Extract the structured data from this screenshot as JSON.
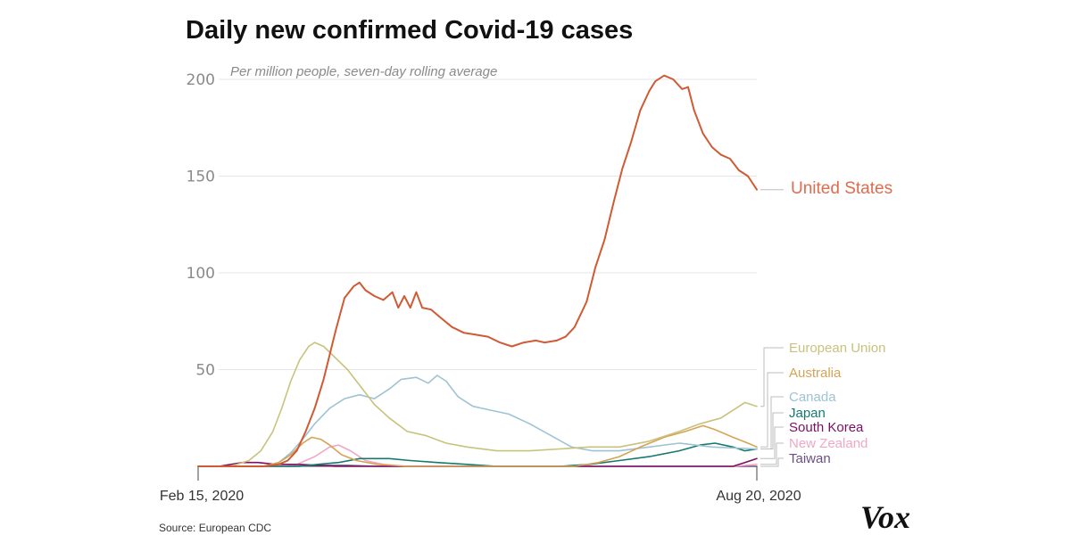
{
  "chart_data": {
    "type": "line",
    "title": "Daily new confirmed Covid-19 cases",
    "subtitle": "Per million people, seven-day rolling average",
    "source": "Source: European CDC",
    "logo": "Vox",
    "x_start_label": "Feb 15, 2020",
    "x_end_label": "Aug 20, 2020",
    "xlim": [
      "2020-02-15",
      "2020-08-20"
    ],
    "ylim": [
      0,
      200
    ],
    "yticks": [
      50,
      100,
      150,
      200
    ],
    "grid": true,
    "legend_placement": "right (end-of-line labels)",
    "series": [
      {
        "name": "United States",
        "color": "#d05a34",
        "points": [
          [
            "2020-02-15",
            0
          ],
          [
            "2020-03-08",
            0
          ],
          [
            "2020-03-13",
            1
          ],
          [
            "2020-03-16",
            3
          ],
          [
            "2020-03-19",
            8
          ],
          [
            "2020-03-22",
            18
          ],
          [
            "2020-03-25",
            30
          ],
          [
            "2020-03-28",
            45
          ],
          [
            "2020-04-01",
            70
          ],
          [
            "2020-04-04",
            87
          ],
          [
            "2020-04-07",
            93
          ],
          [
            "2020-04-09",
            95
          ],
          [
            "2020-04-11",
            91
          ],
          [
            "2020-04-14",
            88
          ],
          [
            "2020-04-17",
            86
          ],
          [
            "2020-04-20",
            90
          ],
          [
            "2020-04-22",
            82
          ],
          [
            "2020-04-24",
            88
          ],
          [
            "2020-04-26",
            82
          ],
          [
            "2020-04-28",
            90
          ],
          [
            "2020-04-30",
            82
          ],
          [
            "2020-05-03",
            81
          ],
          [
            "2020-05-06",
            77
          ],
          [
            "2020-05-10",
            72
          ],
          [
            "2020-05-14",
            69
          ],
          [
            "2020-05-18",
            68
          ],
          [
            "2020-05-22",
            67
          ],
          [
            "2020-05-26",
            64
          ],
          [
            "2020-05-30",
            62
          ],
          [
            "2020-06-03",
            64
          ],
          [
            "2020-06-07",
            65
          ],
          [
            "2020-06-10",
            64
          ],
          [
            "2020-06-14",
            65
          ],
          [
            "2020-06-17",
            67
          ],
          [
            "2020-06-20",
            72
          ],
          [
            "2020-06-24",
            85
          ],
          [
            "2020-06-27",
            103
          ],
          [
            "2020-06-30",
            117
          ],
          [
            "2020-07-03",
            136
          ],
          [
            "2020-07-06",
            154
          ],
          [
            "2020-07-09",
            168
          ],
          [
            "2020-07-12",
            184
          ],
          [
            "2020-07-15",
            194
          ],
          [
            "2020-07-17",
            199
          ],
          [
            "2020-07-20",
            202
          ],
          [
            "2020-07-23",
            200
          ],
          [
            "2020-07-26",
            195
          ],
          [
            "2020-07-28",
            196
          ],
          [
            "2020-07-30",
            184
          ],
          [
            "2020-08-02",
            172
          ],
          [
            "2020-08-05",
            165
          ],
          [
            "2020-08-08",
            161
          ],
          [
            "2020-08-11",
            159
          ],
          [
            "2020-08-14",
            153
          ],
          [
            "2020-08-17",
            150
          ],
          [
            "2020-08-20",
            143
          ]
        ]
      },
      {
        "name": "European Union",
        "color": "#c9c27c",
        "points": [
          [
            "2020-02-15",
            0
          ],
          [
            "2020-02-25",
            0
          ],
          [
            "2020-02-28",
            1
          ],
          [
            "2020-03-03",
            3
          ],
          [
            "2020-03-07",
            8
          ],
          [
            "2020-03-11",
            18
          ],
          [
            "2020-03-14",
            30
          ],
          [
            "2020-03-17",
            44
          ],
          [
            "2020-03-20",
            55
          ],
          [
            "2020-03-23",
            62
          ],
          [
            "2020-03-25",
            64
          ],
          [
            "2020-03-28",
            62
          ],
          [
            "2020-04-01",
            56
          ],
          [
            "2020-04-05",
            50
          ],
          [
            "2020-04-09",
            42
          ],
          [
            "2020-04-14",
            32
          ],
          [
            "2020-04-19",
            25
          ],
          [
            "2020-04-25",
            18
          ],
          [
            "2020-05-01",
            16
          ],
          [
            "2020-05-08",
            12
          ],
          [
            "2020-05-15",
            10
          ],
          [
            "2020-05-25",
            8
          ],
          [
            "2020-06-05",
            8
          ],
          [
            "2020-06-15",
            9
          ],
          [
            "2020-06-25",
            10
          ],
          [
            "2020-07-05",
            10
          ],
          [
            "2020-07-15",
            13
          ],
          [
            "2020-07-25",
            18
          ],
          [
            "2020-08-01",
            22
          ],
          [
            "2020-08-08",
            25
          ],
          [
            "2020-08-13",
            30
          ],
          [
            "2020-08-16",
            33
          ],
          [
            "2020-08-20",
            31
          ]
        ]
      },
      {
        "name": "Australia",
        "color": "#d6a354",
        "points": [
          [
            "2020-02-15",
            0
          ],
          [
            "2020-03-08",
            0
          ],
          [
            "2020-03-13",
            2
          ],
          [
            "2020-03-17",
            6
          ],
          [
            "2020-03-21",
            12
          ],
          [
            "2020-03-24",
            15
          ],
          [
            "2020-03-27",
            14
          ],
          [
            "2020-03-30",
            11
          ],
          [
            "2020-04-03",
            6
          ],
          [
            "2020-04-08",
            3
          ],
          [
            "2020-04-15",
            1
          ],
          [
            "2020-04-25",
            0
          ],
          [
            "2020-06-20",
            0
          ],
          [
            "2020-06-28",
            2
          ],
          [
            "2020-07-05",
            5
          ],
          [
            "2020-07-12",
            10
          ],
          [
            "2020-07-20",
            15
          ],
          [
            "2020-07-27",
            18
          ],
          [
            "2020-08-02",
            21
          ],
          [
            "2020-08-06",
            19
          ],
          [
            "2020-08-12",
            15
          ],
          [
            "2020-08-17",
            12
          ],
          [
            "2020-08-20",
            10
          ]
        ]
      },
      {
        "name": "Canada",
        "color": "#9dc3d4",
        "points": [
          [
            "2020-02-15",
            0
          ],
          [
            "2020-03-08",
            0
          ],
          [
            "2020-03-13",
            2
          ],
          [
            "2020-03-17",
            7
          ],
          [
            "2020-03-21",
            14
          ],
          [
            "2020-03-25",
            22
          ],
          [
            "2020-03-30",
            30
          ],
          [
            "2020-04-04",
            35
          ],
          [
            "2020-04-09",
            37
          ],
          [
            "2020-04-14",
            35
          ],
          [
            "2020-04-19",
            40
          ],
          [
            "2020-04-23",
            45
          ],
          [
            "2020-04-28",
            46
          ],
          [
            "2020-05-02",
            43
          ],
          [
            "2020-05-05",
            47
          ],
          [
            "2020-05-08",
            44
          ],
          [
            "2020-05-12",
            36
          ],
          [
            "2020-05-17",
            31
          ],
          [
            "2020-05-23",
            29
          ],
          [
            "2020-05-29",
            27
          ],
          [
            "2020-06-05",
            22
          ],
          [
            "2020-06-12",
            16
          ],
          [
            "2020-06-19",
            10
          ],
          [
            "2020-06-26",
            8
          ],
          [
            "2020-07-05",
            8
          ],
          [
            "2020-07-15",
            10
          ],
          [
            "2020-07-25",
            12
          ],
          [
            "2020-08-05",
            10
          ],
          [
            "2020-08-20",
            9
          ]
        ]
      },
      {
        "name": "Japan",
        "color": "#147a6e",
        "points": [
          [
            "2020-02-15",
            0
          ],
          [
            "2020-03-20",
            0
          ],
          [
            "2020-03-26",
            1
          ],
          [
            "2020-04-02",
            2
          ],
          [
            "2020-04-09",
            4
          ],
          [
            "2020-04-14",
            4
          ],
          [
            "2020-04-19",
            4
          ],
          [
            "2020-04-26",
            3
          ],
          [
            "2020-05-05",
            2
          ],
          [
            "2020-05-15",
            1
          ],
          [
            "2020-05-25",
            0
          ],
          [
            "2020-06-15",
            0
          ],
          [
            "2020-06-25",
            1
          ],
          [
            "2020-07-05",
            3
          ],
          [
            "2020-07-15",
            5
          ],
          [
            "2020-07-25",
            8
          ],
          [
            "2020-08-01",
            11
          ],
          [
            "2020-08-06",
            12
          ],
          [
            "2020-08-12",
            10
          ],
          [
            "2020-08-16",
            8
          ],
          [
            "2020-08-20",
            9
          ]
        ]
      },
      {
        "name": "South Korea",
        "color": "#7a1060",
        "points": [
          [
            "2020-02-15",
            0
          ],
          [
            "2020-02-22",
            0
          ],
          [
            "2020-02-26",
            1
          ],
          [
            "2020-03-01",
            2
          ],
          [
            "2020-03-06",
            2
          ],
          [
            "2020-03-12",
            1
          ],
          [
            "2020-03-20",
            1
          ],
          [
            "2020-04-01",
            0
          ],
          [
            "2020-08-12",
            0
          ],
          [
            "2020-08-16",
            2
          ],
          [
            "2020-08-20",
            4
          ]
        ]
      },
      {
        "name": "New Zealand",
        "color": "#f0a8c4",
        "points": [
          [
            "2020-02-15",
            0
          ],
          [
            "2020-03-15",
            0
          ],
          [
            "2020-03-19",
            1
          ],
          [
            "2020-03-25",
            5
          ],
          [
            "2020-03-30",
            10
          ],
          [
            "2020-04-02",
            11
          ],
          [
            "2020-04-06",
            8
          ],
          [
            "2020-04-11",
            3
          ],
          [
            "2020-04-17",
            1
          ],
          [
            "2020-04-25",
            0
          ],
          [
            "2020-08-12",
            0
          ],
          [
            "2020-08-20",
            1
          ]
        ]
      },
      {
        "name": "Taiwan",
        "color": "#6a4f86",
        "points": [
          [
            "2020-02-15",
            0
          ],
          [
            "2020-03-18",
            0
          ],
          [
            "2020-03-24",
            0.5
          ],
          [
            "2020-04-05",
            0.5
          ],
          [
            "2020-04-15",
            0
          ],
          [
            "2020-08-20",
            0
          ]
        ]
      }
    ]
  }
}
